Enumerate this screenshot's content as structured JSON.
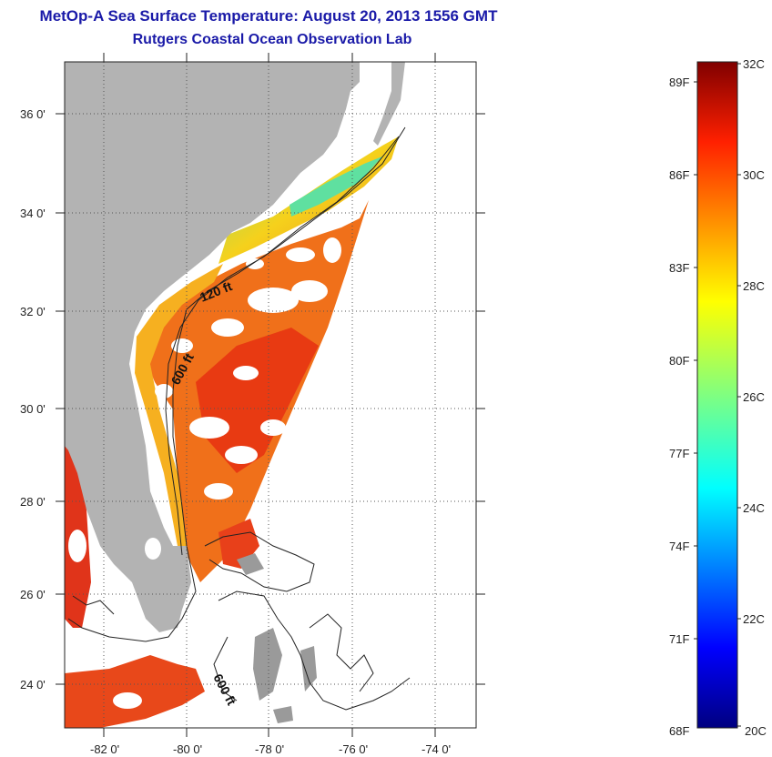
{
  "title": "MetOp-A Sea Surface Temperature:  August 20, 2013 1556 GMT",
  "subtitle": "Rutgers Coastal Ocean Observation Lab",
  "map": {
    "lat_ticks": [
      "36 0'",
      "34 0'",
      "32 0'",
      "30 0'",
      "28 0'",
      "26 0'",
      "24 0'"
    ],
    "lon_ticks": [
      "-82 0'",
      "-80 0'",
      "-78 0'",
      "-76 0'",
      "-74 0'"
    ],
    "contour_labels": [
      "120 ft",
      "600 ft",
      "600 ft"
    ],
    "land_color": "#b3b3b3",
    "no_data_color": "#ffffff"
  },
  "colorbar": {
    "fahrenheit_labels": [
      "89F",
      "86F",
      "83F",
      "80F",
      "77F",
      "74F",
      "71F",
      "68F"
    ],
    "celsius_labels": [
      "32C",
      "30C",
      "28C",
      "26C",
      "24C",
      "22C",
      "20C"
    ]
  }
}
